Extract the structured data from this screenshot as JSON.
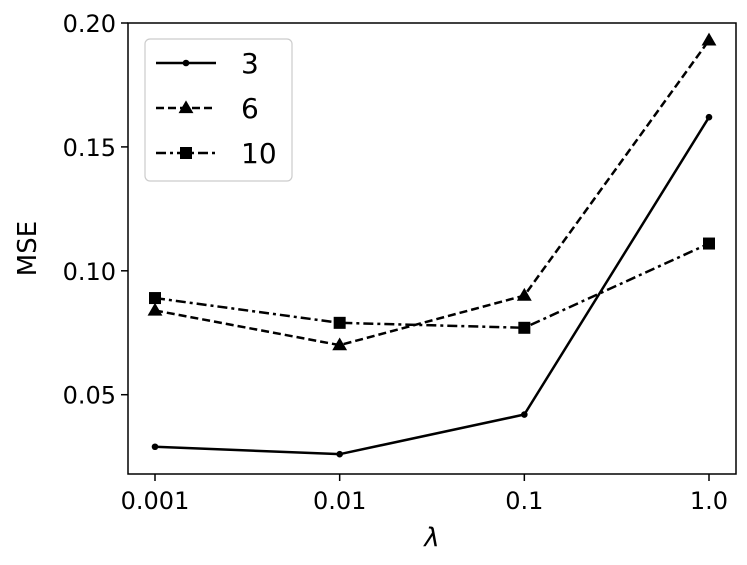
{
  "chart_data": {
    "type": "line",
    "x_scale": "log",
    "x": [
      0.001,
      0.01,
      0.1,
      1.0
    ],
    "xtick_labels": [
      "0.001",
      "0.01",
      "0.1",
      "1.0"
    ],
    "xlabel": "λ",
    "ylabel": "MSE",
    "ylim": [
      0.018,
      0.2
    ],
    "yticks": [
      0.05,
      0.1,
      0.15,
      0.2
    ],
    "ytick_labels": [
      "0.05",
      "0.10",
      "0.15",
      "0.20"
    ],
    "grid": false,
    "legend_position": "top-left",
    "series": [
      {
        "name": "3",
        "values": [
          0.029,
          0.026,
          0.042,
          0.162
        ],
        "line_style": "solid",
        "marker": "circle",
        "color": "#000000"
      },
      {
        "name": "6",
        "values": [
          0.084,
          0.07,
          0.09,
          0.193
        ],
        "line_style": "dashed",
        "marker": "triangle",
        "color": "#000000"
      },
      {
        "name": "10",
        "values": [
          0.089,
          0.079,
          0.077,
          0.111
        ],
        "line_style": "dashdot",
        "marker": "square",
        "color": "#000000"
      }
    ]
  }
}
